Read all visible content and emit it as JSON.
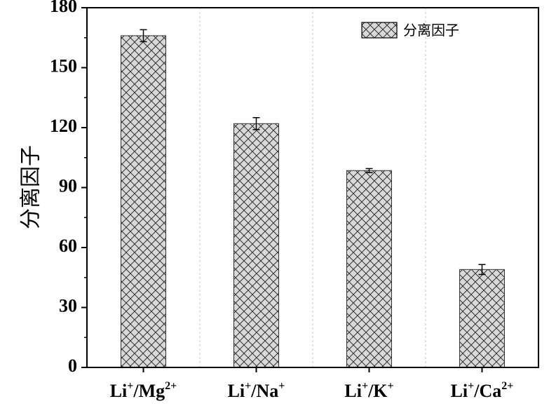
{
  "chart_data": {
    "type": "bar",
    "categories": [
      {
        "base": "Li",
        "sup1": "+",
        "sep": "/",
        "ion": "Mg",
        "sup2": "2+"
      },
      {
        "base": "Li",
        "sup1": "+",
        "sep": "/",
        "ion": "Na",
        "sup2": "+"
      },
      {
        "base": "Li",
        "sup1": "+",
        "sep": "/",
        "ion": "K",
        "sup2": "+"
      },
      {
        "base": "Li",
        "sup1": "+",
        "sep": "/",
        "ion": "Ca",
        "sup2": "2+"
      }
    ],
    "series": [
      {
        "name": "分离因子",
        "values": [
          166,
          122,
          98.5,
          49
        ],
        "errors": [
          3,
          3,
          1,
          2.5
        ]
      }
    ],
    "ylabel": "分离因子",
    "xlabel": "",
    "ylim": [
      0,
      180
    ],
    "yticks": [
      "0",
      "30",
      "60",
      "90",
      "120",
      "150",
      "180"
    ],
    "grid": "vertical-dashed-between-categories",
    "legend": "top-right",
    "bar_fill": "crosshatch",
    "colors": {
      "bar_fill": "#d9d9d9",
      "hatch": "#333333",
      "axis": "#000000",
      "grid": "#c8c8c8"
    }
  }
}
